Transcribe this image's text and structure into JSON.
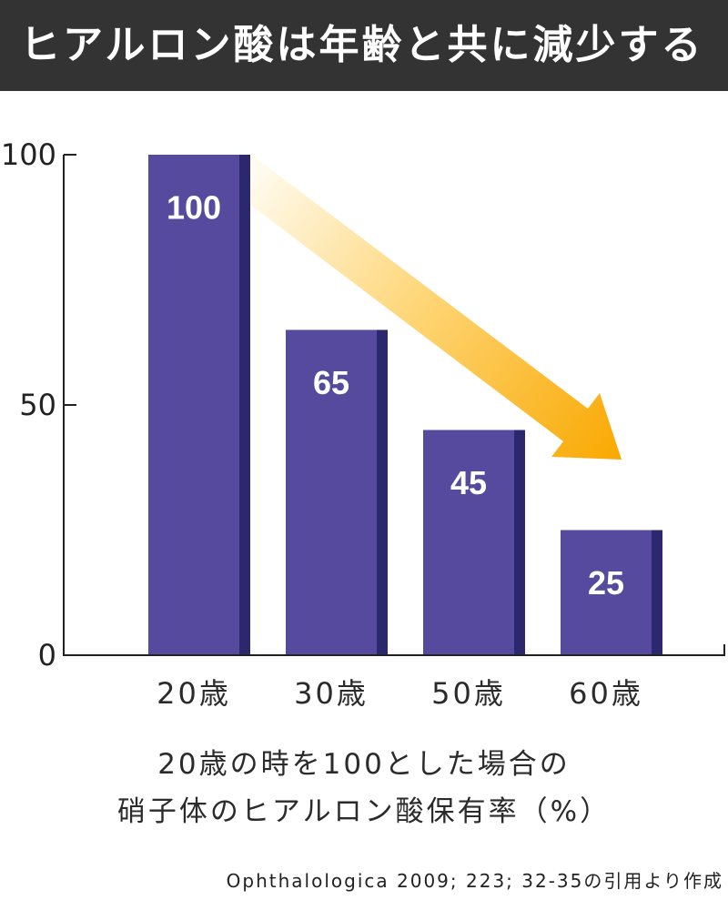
{
  "chart_data": {
    "type": "bar",
    "title": "ヒアルロン酸は年齢と共に減少する",
    "categories": [
      "20歳",
      "30歳",
      "50歳",
      "60歳"
    ],
    "values": [
      100,
      65,
      45,
      25
    ],
    "yticks": [
      0,
      50,
      100
    ],
    "ylim": [
      0,
      100
    ],
    "grid": false,
    "caption": [
      "20歳の時を100とした場合の",
      "硝子体のヒアルロン酸保有率（%）"
    ]
  },
  "source": "Ophthalologica 2009; 223; 32-35の引用より作成",
  "colors": {
    "header_bg": "#333333",
    "header_text": "#ffffff",
    "bar": "#564a9e",
    "bar_side": "#2c286e",
    "axis": "#222222",
    "text": "#2b2b2b",
    "arrow_gradient": [
      "#fffbef",
      "#fed677",
      "#f9a800"
    ]
  }
}
